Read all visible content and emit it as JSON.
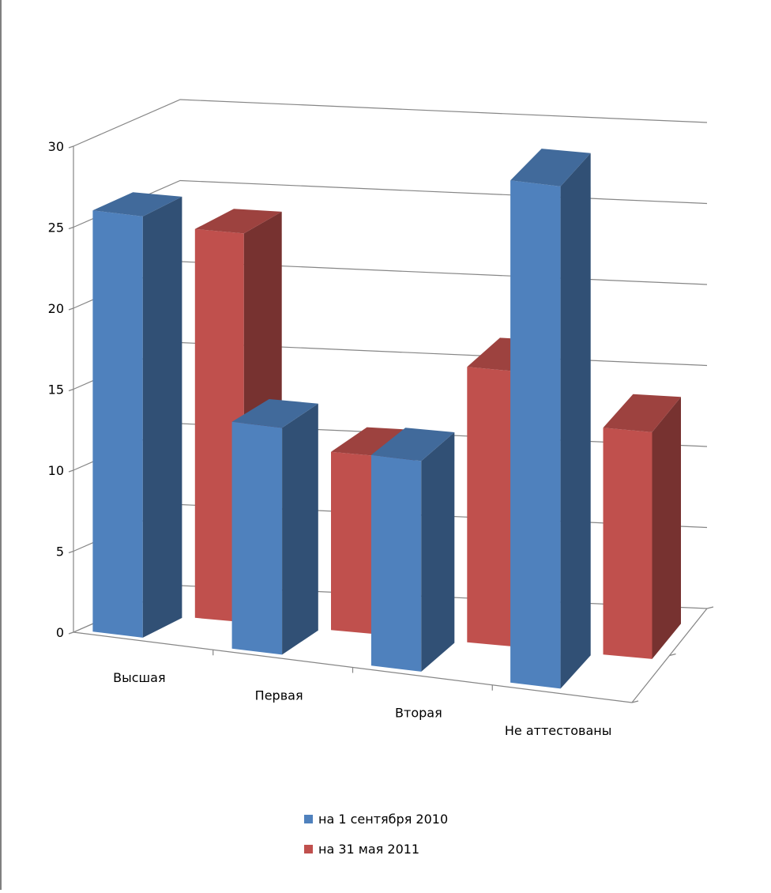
{
  "chart_data": {
    "type": "bar",
    "categories": [
      "Высшая",
      "Первая",
      "Вторая",
      "Не аттестованы"
    ],
    "series": [
      {
        "name": "на 1 сентября 2010",
        "values": [
          26,
          14,
          13,
          31
        ],
        "color": "#4F81BD"
      },
      {
        "name": "на 31 мая 2011",
        "values": [
          24,
          11,
          17,
          14
        ],
        "color": "#C0504D"
      }
    ],
    "y_ticks": [
      "0",
      "5",
      "10",
      "15",
      "20",
      "25",
      "30"
    ],
    "ylim": [
      0,
      30
    ],
    "grid": true,
    "legend_position": "bottom"
  }
}
